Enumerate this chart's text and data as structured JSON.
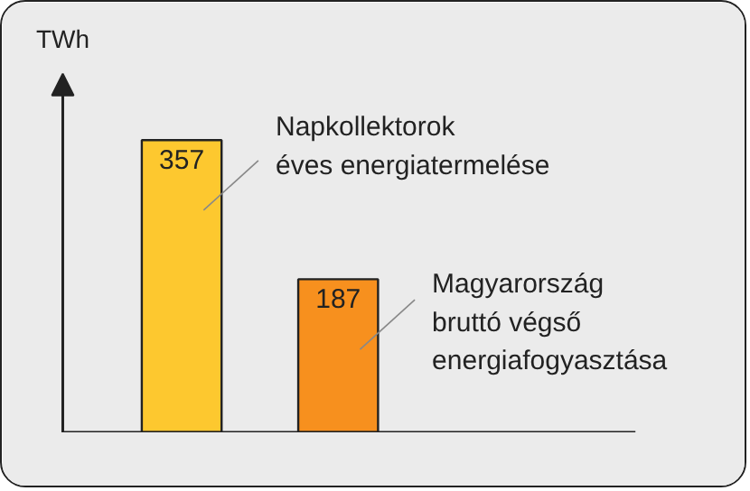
{
  "chart_data": {
    "type": "bar",
    "ylabel": "TWh",
    "categories": [
      null,
      null
    ],
    "values": [
      357,
      187
    ],
    "colors": [
      "#fdc82f",
      "#f7901e"
    ],
    "data_labels": true,
    "annotations": [
      "Napkollektorok\néves energiatermelése",
      "Magyarország\nbruttó végső\nenergiafogyasztása"
    ]
  }
}
